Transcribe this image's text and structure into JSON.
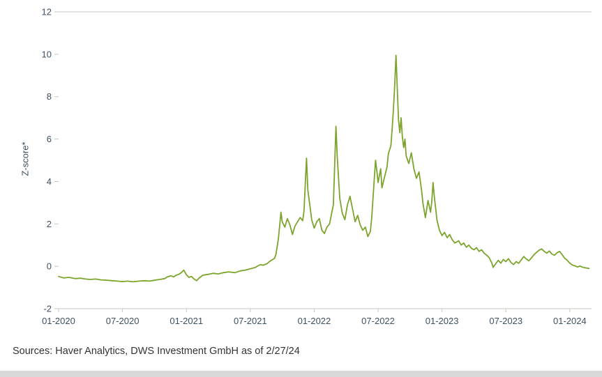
{
  "page": {
    "background": "#ffffff"
  },
  "footer": {
    "source_text": "Sources: Haver Analytics, DWS Investment GmbH as of 2/27/24"
  },
  "chart_data": {
    "type": "line",
    "title": "",
    "xlabel": "",
    "ylabel": "Z-score*",
    "ylim": [
      -2,
      12
    ],
    "yticks": [
      -2,
      0,
      2,
      4,
      6,
      8,
      10,
      12
    ],
    "xlim": [
      2020.0,
      2024.17
    ],
    "xticks": [
      2020.0,
      2020.5,
      2021.0,
      2021.5,
      2022.0,
      2022.5,
      2023.0,
      2023.5,
      2024.0
    ],
    "xtick_labels": [
      "01-2020",
      "07-2020",
      "01-2021",
      "07-2021",
      "01-2022",
      "07-2022",
      "01-2023",
      "07-2023",
      "01-2024"
    ],
    "grid": false,
    "legend": false,
    "axis_color": "#c3c9bd",
    "label_color": "#3e5060",
    "series": [
      {
        "name": "Z-score",
        "color": "#7CA42B",
        "points": [
          [
            2020.0,
            -0.48
          ],
          [
            2020.04,
            -0.55
          ],
          [
            2020.08,
            -0.52
          ],
          [
            2020.13,
            -0.58
          ],
          [
            2020.17,
            -0.56
          ],
          [
            2020.21,
            -0.6
          ],
          [
            2020.25,
            -0.62
          ],
          [
            2020.29,
            -0.6
          ],
          [
            2020.33,
            -0.64
          ],
          [
            2020.38,
            -0.66
          ],
          [
            2020.42,
            -0.68
          ],
          [
            2020.46,
            -0.7
          ],
          [
            2020.5,
            -0.72
          ],
          [
            2020.54,
            -0.7
          ],
          [
            2020.58,
            -0.73
          ],
          [
            2020.63,
            -0.7
          ],
          [
            2020.67,
            -0.68
          ],
          [
            2020.71,
            -0.7
          ],
          [
            2020.75,
            -0.66
          ],
          [
            2020.79,
            -0.62
          ],
          [
            2020.83,
            -0.58
          ],
          [
            2020.85,
            -0.5
          ],
          [
            2020.88,
            -0.45
          ],
          [
            2020.9,
            -0.5
          ],
          [
            2020.92,
            -0.42
          ],
          [
            2020.94,
            -0.38
          ],
          [
            2020.96,
            -0.3
          ],
          [
            2020.98,
            -0.18
          ],
          [
            2021.0,
            -0.4
          ],
          [
            2021.02,
            -0.52
          ],
          [
            2021.04,
            -0.48
          ],
          [
            2021.06,
            -0.6
          ],
          [
            2021.08,
            -0.68
          ],
          [
            2021.1,
            -0.55
          ],
          [
            2021.13,
            -0.42
          ],
          [
            2021.17,
            -0.38
          ],
          [
            2021.21,
            -0.33
          ],
          [
            2021.25,
            -0.36
          ],
          [
            2021.29,
            -0.3
          ],
          [
            2021.33,
            -0.26
          ],
          [
            2021.38,
            -0.3
          ],
          [
            2021.42,
            -0.22
          ],
          [
            2021.46,
            -0.18
          ],
          [
            2021.5,
            -0.12
          ],
          [
            2021.54,
            -0.05
          ],
          [
            2021.56,
            0.02
          ],
          [
            2021.58,
            0.08
          ],
          [
            2021.6,
            0.05
          ],
          [
            2021.63,
            0.12
          ],
          [
            2021.65,
            0.22
          ],
          [
            2021.67,
            0.3
          ],
          [
            2021.69,
            0.38
          ],
          [
            2021.7,
            0.55
          ],
          [
            2021.72,
            1.3
          ],
          [
            2021.74,
            2.55
          ],
          [
            2021.75,
            2.1
          ],
          [
            2021.77,
            1.85
          ],
          [
            2021.79,
            2.25
          ],
          [
            2021.81,
            1.95
          ],
          [
            2021.83,
            1.5
          ],
          [
            2021.85,
            1.9
          ],
          [
            2021.87,
            2.1
          ],
          [
            2021.89,
            2.3
          ],
          [
            2021.91,
            2.15
          ],
          [
            2021.92,
            2.6
          ],
          [
            2021.94,
            5.1
          ],
          [
            2021.95,
            3.6
          ],
          [
            2021.97,
            2.7
          ],
          [
            2021.98,
            2.2
          ],
          [
            2022.0,
            1.8
          ],
          [
            2022.02,
            2.1
          ],
          [
            2022.04,
            2.25
          ],
          [
            2022.06,
            1.7
          ],
          [
            2022.08,
            1.55
          ],
          [
            2022.1,
            1.85
          ],
          [
            2022.12,
            2.0
          ],
          [
            2022.15,
            2.9
          ],
          [
            2022.17,
            6.6
          ],
          [
            2022.18,
            5.2
          ],
          [
            2022.2,
            3.2
          ],
          [
            2022.22,
            2.5
          ],
          [
            2022.24,
            2.2
          ],
          [
            2022.26,
            2.9
          ],
          [
            2022.28,
            3.3
          ],
          [
            2022.3,
            2.7
          ],
          [
            2022.32,
            2.1
          ],
          [
            2022.34,
            2.4
          ],
          [
            2022.36,
            1.95
          ],
          [
            2022.38,
            1.7
          ],
          [
            2022.4,
            1.85
          ],
          [
            2022.42,
            1.4
          ],
          [
            2022.44,
            1.65
          ],
          [
            2022.45,
            2.3
          ],
          [
            2022.46,
            3.2
          ],
          [
            2022.47,
            4.1
          ],
          [
            2022.48,
            5.0
          ],
          [
            2022.49,
            4.5
          ],
          [
            2022.5,
            3.95
          ],
          [
            2022.52,
            4.6
          ],
          [
            2022.53,
            3.7
          ],
          [
            2022.55,
            4.2
          ],
          [
            2022.57,
            4.7
          ],
          [
            2022.58,
            5.3
          ],
          [
            2022.6,
            5.7
          ],
          [
            2022.61,
            6.5
          ],
          [
            2022.62,
            7.4
          ],
          [
            2022.63,
            8.6
          ],
          [
            2022.64,
            9.95
          ],
          [
            2022.65,
            8.4
          ],
          [
            2022.66,
            6.9
          ],
          [
            2022.67,
            6.3
          ],
          [
            2022.68,
            7.0
          ],
          [
            2022.69,
            6.1
          ],
          [
            2022.7,
            5.6
          ],
          [
            2022.71,
            6.0
          ],
          [
            2022.72,
            5.2
          ],
          [
            2022.74,
            4.85
          ],
          [
            2022.76,
            5.35
          ],
          [
            2022.78,
            4.6
          ],
          [
            2022.8,
            4.15
          ],
          [
            2022.82,
            4.45
          ],
          [
            2022.84,
            3.6
          ],
          [
            2022.85,
            3.0
          ],
          [
            2022.87,
            2.3
          ],
          [
            2022.88,
            2.7
          ],
          [
            2022.89,
            3.1
          ],
          [
            2022.9,
            2.85
          ],
          [
            2022.91,
            2.55
          ],
          [
            2022.92,
            3.05
          ],
          [
            2022.93,
            3.95
          ],
          [
            2022.94,
            3.3
          ],
          [
            2022.95,
            2.75
          ],
          [
            2022.96,
            2.2
          ],
          [
            2022.97,
            1.95
          ],
          [
            2022.98,
            1.7
          ],
          [
            2023.0,
            1.45
          ],
          [
            2023.02,
            1.6
          ],
          [
            2023.04,
            1.35
          ],
          [
            2023.06,
            1.5
          ],
          [
            2023.08,
            1.25
          ],
          [
            2023.1,
            1.1
          ],
          [
            2023.13,
            1.2
          ],
          [
            2023.15,
            1.0
          ],
          [
            2023.17,
            1.1
          ],
          [
            2023.19,
            0.9
          ],
          [
            2023.21,
            1.0
          ],
          [
            2023.23,
            0.85
          ],
          [
            2023.25,
            0.78
          ],
          [
            2023.27,
            0.88
          ],
          [
            2023.29,
            0.7
          ],
          [
            2023.31,
            0.78
          ],
          [
            2023.33,
            0.62
          ],
          [
            2023.35,
            0.52
          ],
          [
            2023.37,
            0.4
          ],
          [
            2023.39,
            0.15
          ],
          [
            2023.4,
            -0.05
          ],
          [
            2023.42,
            0.12
          ],
          [
            2023.44,
            0.28
          ],
          [
            2023.46,
            0.15
          ],
          [
            2023.48,
            0.32
          ],
          [
            2023.5,
            0.22
          ],
          [
            2023.52,
            0.36
          ],
          [
            2023.54,
            0.18
          ],
          [
            2023.56,
            0.08
          ],
          [
            2023.58,
            0.22
          ],
          [
            2023.6,
            0.14
          ],
          [
            2023.62,
            0.3
          ],
          [
            2023.64,
            0.46
          ],
          [
            2023.66,
            0.34
          ],
          [
            2023.68,
            0.26
          ],
          [
            2023.7,
            0.4
          ],
          [
            2023.72,
            0.55
          ],
          [
            2023.74,
            0.66
          ],
          [
            2023.76,
            0.76
          ],
          [
            2023.78,
            0.82
          ],
          [
            2023.8,
            0.7
          ],
          [
            2023.82,
            0.62
          ],
          [
            2023.84,
            0.72
          ],
          [
            2023.86,
            0.58
          ],
          [
            2023.88,
            0.52
          ],
          [
            2023.9,
            0.64
          ],
          [
            2023.92,
            0.7
          ],
          [
            2023.94,
            0.55
          ],
          [
            2023.96,
            0.38
          ],
          [
            2023.98,
            0.28
          ],
          [
            2024.0,
            0.15
          ],
          [
            2024.02,
            0.06
          ],
          [
            2024.04,
            0.02
          ],
          [
            2024.06,
            -0.03
          ],
          [
            2024.08,
            0.01
          ],
          [
            2024.1,
            -0.04
          ],
          [
            2024.12,
            -0.07
          ],
          [
            2024.15,
            -0.1
          ]
        ]
      }
    ]
  }
}
